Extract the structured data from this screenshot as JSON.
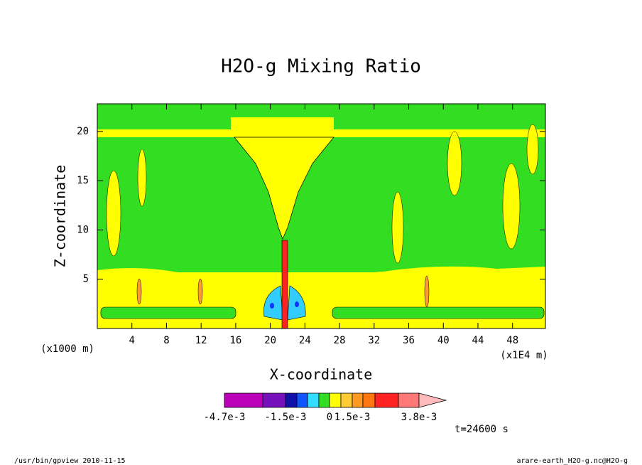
{
  "chart_data": {
    "type": "contour",
    "title": "H2O-g Mixing Ratio",
    "x_label": "X-coordinate",
    "y_label": "Z-coordinate",
    "y_unit": "(x1000 m)",
    "x_unit": "(x1E4 m)",
    "time_label": "t=24600 s",
    "footer_left": "/usr/bin/gpview  2010-11-15",
    "footer_right": "arare-earth_H2O-g.nc@H2O-g",
    "xlim": [
      0,
      51.8
    ],
    "xticks": [
      4,
      8,
      12,
      16,
      20,
      24,
      28,
      32,
      36,
      40,
      44,
      48
    ],
    "ylim": [
      0,
      22.8
    ],
    "yticks": [
      5,
      10,
      15,
      20
    ],
    "colorbar": {
      "colors": [
        "#bb00bb",
        "#7711bb",
        "#1111aa",
        "#1155ff",
        "#33ddff",
        "#33dd22",
        "#ffff00",
        "#ffcc33",
        "#ff9922",
        "#ff7711",
        "#ff2222",
        "#ff7777",
        "#ffbbbb"
      ],
      "ticks": [
        {
          "value": -0.0047,
          "label": "-4.7e-3"
        },
        {
          "value": -0.0015,
          "label": "-1.5e-3"
        },
        0,
        {
          "value": 0.0015,
          "label": "1.5e-3"
        },
        {
          "value": 0.0038,
          "label": "3.8e-3"
        }
      ]
    }
  }
}
